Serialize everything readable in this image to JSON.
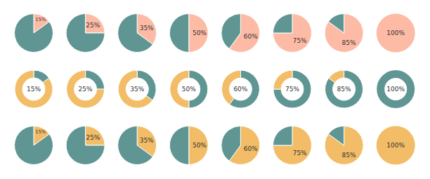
{
  "chart_data": [
    {
      "type": "pie",
      "data_labels": true,
      "series": [
        {
          "color": "#fdbba6",
          "values": [
            15,
            25,
            35,
            50,
            60,
            75,
            85,
            100
          ],
          "value_labels": [
            "15%",
            "25%",
            "35%",
            "50%",
            "60%",
            "75%",
            "85%",
            "100%"
          ]
        },
        {
          "color": "#5f9693",
          "values": [
            85,
            75,
            65,
            50,
            40,
            25,
            15,
            0
          ]
        }
      ]
    },
    {
      "type": "donut",
      "data_labels": true,
      "series": [
        {
          "color": "#5f9693",
          "values": [
            15,
            25,
            35,
            50,
            60,
            75,
            85,
            100
          ],
          "value_labels": [
            "15%",
            "25%",
            "35%",
            "50%",
            "60%",
            "75%",
            "85%",
            "100%"
          ]
        },
        {
          "color": "#f2bd66",
          "values": [
            85,
            75,
            65,
            50,
            40,
            25,
            15,
            0
          ]
        }
      ]
    },
    {
      "type": "pie",
      "data_labels": true,
      "series": [
        {
          "color": "#f2bd66",
          "values": [
            15,
            25,
            35,
            50,
            60,
            75,
            85,
            100
          ],
          "value_labels": [
            "15%",
            "25%",
            "35%",
            "50%",
            "60%",
            "75%",
            "85%",
            "100%"
          ]
        },
        {
          "color": "#5f9693",
          "values": [
            85,
            75,
            65,
            50,
            40,
            25,
            15,
            0
          ]
        }
      ]
    }
  ]
}
